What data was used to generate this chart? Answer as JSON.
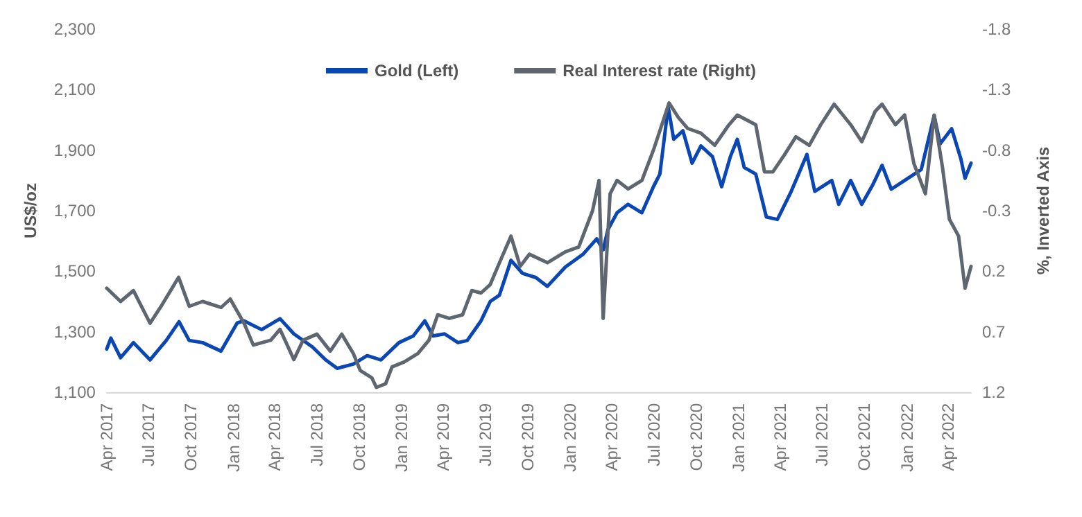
{
  "chart_data": {
    "type": "line",
    "ylabel": "US$/oz",
    "y2label": "%, Inverted Axis",
    "legend": "top",
    "grid": false,
    "marker": "none",
    "line_style": "solid",
    "xlim": [
      "2017-04-01",
      "2022-05-20"
    ],
    "xticks": [
      {
        "value": "2017-04",
        "label": "Apr 2017"
      },
      {
        "value": "2017-07",
        "label": "Jul 2017"
      },
      {
        "value": "2017-10",
        "label": "Oct 2017"
      },
      {
        "value": "2018-01",
        "label": "Jan 2018"
      },
      {
        "value": "2018-04",
        "label": "Apr 2018"
      },
      {
        "value": "2018-07",
        "label": "Jul 2018"
      },
      {
        "value": "2018-10",
        "label": "Oct 2018"
      },
      {
        "value": "2019-01",
        "label": "Jan 2019"
      },
      {
        "value": "2019-04",
        "label": "Apr 2019"
      },
      {
        "value": "2019-07",
        "label": "Jul 2019"
      },
      {
        "value": "2019-10",
        "label": "Oct 2019"
      },
      {
        "value": "2020-01",
        "label": "Jan 2020"
      },
      {
        "value": "2020-04",
        "label": "Apr 2020"
      },
      {
        "value": "2020-07",
        "label": "Jul 2020"
      },
      {
        "value": "2020-10",
        "label": "Oct 2020"
      },
      {
        "value": "2021-01",
        "label": "Jan 2021"
      },
      {
        "value": "2021-04",
        "label": "Apr 2021"
      },
      {
        "value": "2021-07",
        "label": "Jul 2021"
      },
      {
        "value": "2021-10",
        "label": "Oct 2021"
      },
      {
        "value": "2022-01",
        "label": "Jan 2022"
      },
      {
        "value": "2022-04",
        "label": "Apr 2022"
      }
    ],
    "ylim": [
      1100,
      2300
    ],
    "yticks": [
      {
        "value": 1100,
        "label": "1,100"
      },
      {
        "value": 1300,
        "label": "1,300"
      },
      {
        "value": 1500,
        "label": "1,500"
      },
      {
        "value": 1700,
        "label": "1,700"
      },
      {
        "value": 1900,
        "label": "1,900"
      },
      {
        "value": 2100,
        "label": "2,100"
      },
      {
        "value": 2300,
        "label": "2,300"
      }
    ],
    "y2lim": [
      1.2,
      -1.8
    ],
    "y2ticks": [
      -1.8,
      -1.3,
      -0.8,
      -0.3,
      0.2,
      0.7,
      1.2
    ],
    "series": [
      {
        "name": "Gold (Left)",
        "color": "#0a47b5",
        "x": [
          "2017-04-01",
          "2017-04-10",
          "2017-05-01",
          "2017-05-29",
          "2017-07-04",
          "2017-08-08",
          "2017-09-05",
          "2017-09-27",
          "2017-10-26",
          "2017-12-05",
          "2018-01-09",
          "2018-01-24",
          "2018-03-03",
          "2018-04-12",
          "2018-05-12",
          "2018-06-21",
          "2018-07-20",
          "2018-08-14",
          "2018-09-18",
          "2018-10-18",
          "2018-11-17",
          "2018-12-26",
          "2019-01-26",
          "2019-02-20",
          "2019-03-10",
          "2019-04-04",
          "2019-05-03",
          "2019-05-23",
          "2019-06-22",
          "2019-07-12",
          "2019-08-01",
          "2019-08-26",
          "2019-09-20",
          "2019-10-19",
          "2019-11-13",
          "2019-12-22",
          "2020-01-30",
          "2020-02-28",
          "2020-03-13",
          "2020-03-23",
          "2020-04-12",
          "2020-05-06",
          "2020-06-05",
          "2020-06-30",
          "2020-07-14",
          "2020-08-01",
          "2020-08-13",
          "2020-09-02",
          "2020-09-22",
          "2020-10-11",
          "2020-11-05",
          "2020-11-25",
          "2020-12-14",
          "2020-12-29",
          "2021-01-13",
          "2021-02-07",
          "2021-03-02",
          "2021-03-26",
          "2021-04-25",
          "2021-05-29",
          "2021-06-15",
          "2021-07-22",
          "2021-08-06",
          "2021-09-01",
          "2021-09-25",
          "2021-10-19",
          "2021-11-08",
          "2021-11-28",
          "2021-12-27",
          "2022-02-01",
          "2022-03-01",
          "2022-03-14",
          "2022-04-08",
          "2022-04-28",
          "2022-05-07",
          "2022-05-20"
        ],
        "values": [
          1243,
          1279,
          1214,
          1264,
          1207,
          1271,
          1333,
          1271,
          1264,
          1236,
          1329,
          1336,
          1307,
          1343,
          1293,
          1250,
          1207,
          1179,
          1193,
          1221,
          1207,
          1264,
          1286,
          1336,
          1286,
          1293,
          1264,
          1271,
          1336,
          1400,
          1421,
          1536,
          1493,
          1479,
          1450,
          1514,
          1557,
          1607,
          1571,
          1636,
          1693,
          1721,
          1693,
          1779,
          1821,
          2043,
          1936,
          1964,
          1857,
          1914,
          1879,
          1779,
          1879,
          1936,
          1843,
          1821,
          1679,
          1671,
          1764,
          1886,
          1764,
          1800,
          1721,
          1800,
          1721,
          1786,
          1850,
          1771,
          1800,
          1836,
          2014,
          1921,
          1971,
          1871,
          1807,
          1857
        ]
      },
      {
        "name": "Real Interest rate (Right)",
        "color": "#5f6670",
        "axis": "y2",
        "x": [
          "2017-04-01",
          "2017-05-01",
          "2017-05-29",
          "2017-07-04",
          "2017-07-28",
          "2017-09-04",
          "2017-09-27",
          "2017-10-26",
          "2017-12-05",
          "2017-12-25",
          "2018-01-24",
          "2018-02-13",
          "2018-03-23",
          "2018-04-12",
          "2018-05-12",
          "2018-06-01",
          "2018-07-01",
          "2018-07-30",
          "2018-08-24",
          "2018-09-18",
          "2018-10-03",
          "2018-10-28",
          "2018-11-07",
          "2018-11-27",
          "2018-12-11",
          "2019-01-06",
          "2019-02-05",
          "2019-03-01",
          "2019-03-20",
          "2019-04-14",
          "2019-05-13",
          "2019-06-02",
          "2019-06-22",
          "2019-07-12",
          "2019-08-01",
          "2019-08-26",
          "2019-09-15",
          "2019-10-05",
          "2019-11-13",
          "2019-12-22",
          "2020-01-20",
          "2020-02-19",
          "2020-03-04",
          "2020-03-13",
          "2020-03-28",
          "2020-04-12",
          "2020-05-06",
          "2020-06-05",
          "2020-06-30",
          "2020-08-03",
          "2020-08-23",
          "2020-09-12",
          "2020-10-11",
          "2020-11-10",
          "2020-12-09",
          "2020-12-29",
          "2021-02-07",
          "2021-02-26",
          "2021-03-16",
          "2021-04-10",
          "2021-05-05",
          "2021-06-03",
          "2021-06-28",
          "2021-07-27",
          "2021-09-01",
          "2021-09-25",
          "2021-10-24",
          "2021-11-08",
          "2021-12-07",
          "2021-12-27",
          "2022-01-16",
          "2022-02-10",
          "2022-03-01",
          "2022-03-19",
          "2022-04-03",
          "2022-04-23",
          "2022-05-07",
          "2022-05-20"
        ],
        "values": [
          0.34,
          0.45,
          0.36,
          0.63,
          0.49,
          0.25,
          0.49,
          0.45,
          0.5,
          0.43,
          0.63,
          0.81,
          0.77,
          0.68,
          0.93,
          0.77,
          0.72,
          0.86,
          0.72,
          0.88,
          1.02,
          1.08,
          1.16,
          1.13,
          0.99,
          0.95,
          0.88,
          0.77,
          0.56,
          0.59,
          0.56,
          0.36,
          0.38,
          0.31,
          0.13,
          -0.09,
          0.16,
          0.06,
          0.13,
          0.04,
          0.0,
          -0.3,
          -0.55,
          0.59,
          -0.44,
          -0.55,
          -0.48,
          -0.55,
          -0.8,
          -1.19,
          -1.07,
          -0.98,
          -0.94,
          -0.84,
          -1.0,
          -1.09,
          -1.01,
          -0.62,
          -0.62,
          -0.76,
          -0.91,
          -0.84,
          -1.01,
          -1.18,
          -1.01,
          -0.87,
          -1.12,
          -1.18,
          -1.01,
          -1.09,
          -0.69,
          -0.44,
          -1.09,
          -0.66,
          -0.23,
          -0.09,
          0.34,
          0.16
        ]
      }
    ]
  }
}
